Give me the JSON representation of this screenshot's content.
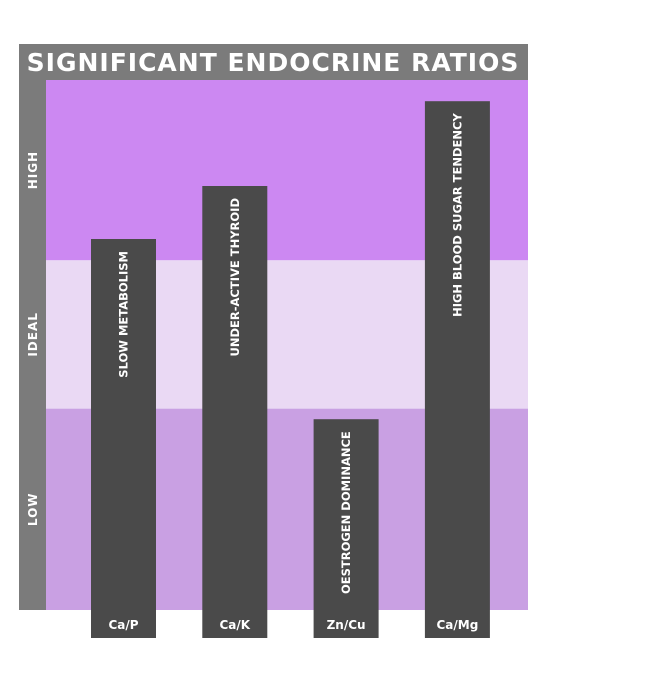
{
  "chart_data": {
    "type": "bar",
    "title": "SIGNIFICANT ENDOCRINE RATIOS",
    "categories": [
      "Ca/P",
      "Ca/K",
      "Zn/Cu",
      "Ca/Mg"
    ],
    "values": [
      70,
      80,
      36,
      96
    ],
    "bar_labels": [
      "SLOW METABOLISM",
      "UNDER-ACTIVE THYROID",
      "OESTROGEN DOMINANCE",
      "HIGH BLOOD SUGAR TENDENCY"
    ],
    "ylim": [
      0,
      100
    ],
    "bands": [
      {
        "label": "LOW",
        "from": 0,
        "to": 38,
        "color": "#c9a0e3"
      },
      {
        "label": "IDEAL",
        "from": 38,
        "to": 66,
        "color": "#ead9f4"
      },
      {
        "label": "HIGH",
        "from": 66,
        "to": 100,
        "color": "#cc88f2"
      }
    ],
    "bar_color": "#4a4a4a",
    "frame_color": "#7b7b7b",
    "grid": false
  }
}
